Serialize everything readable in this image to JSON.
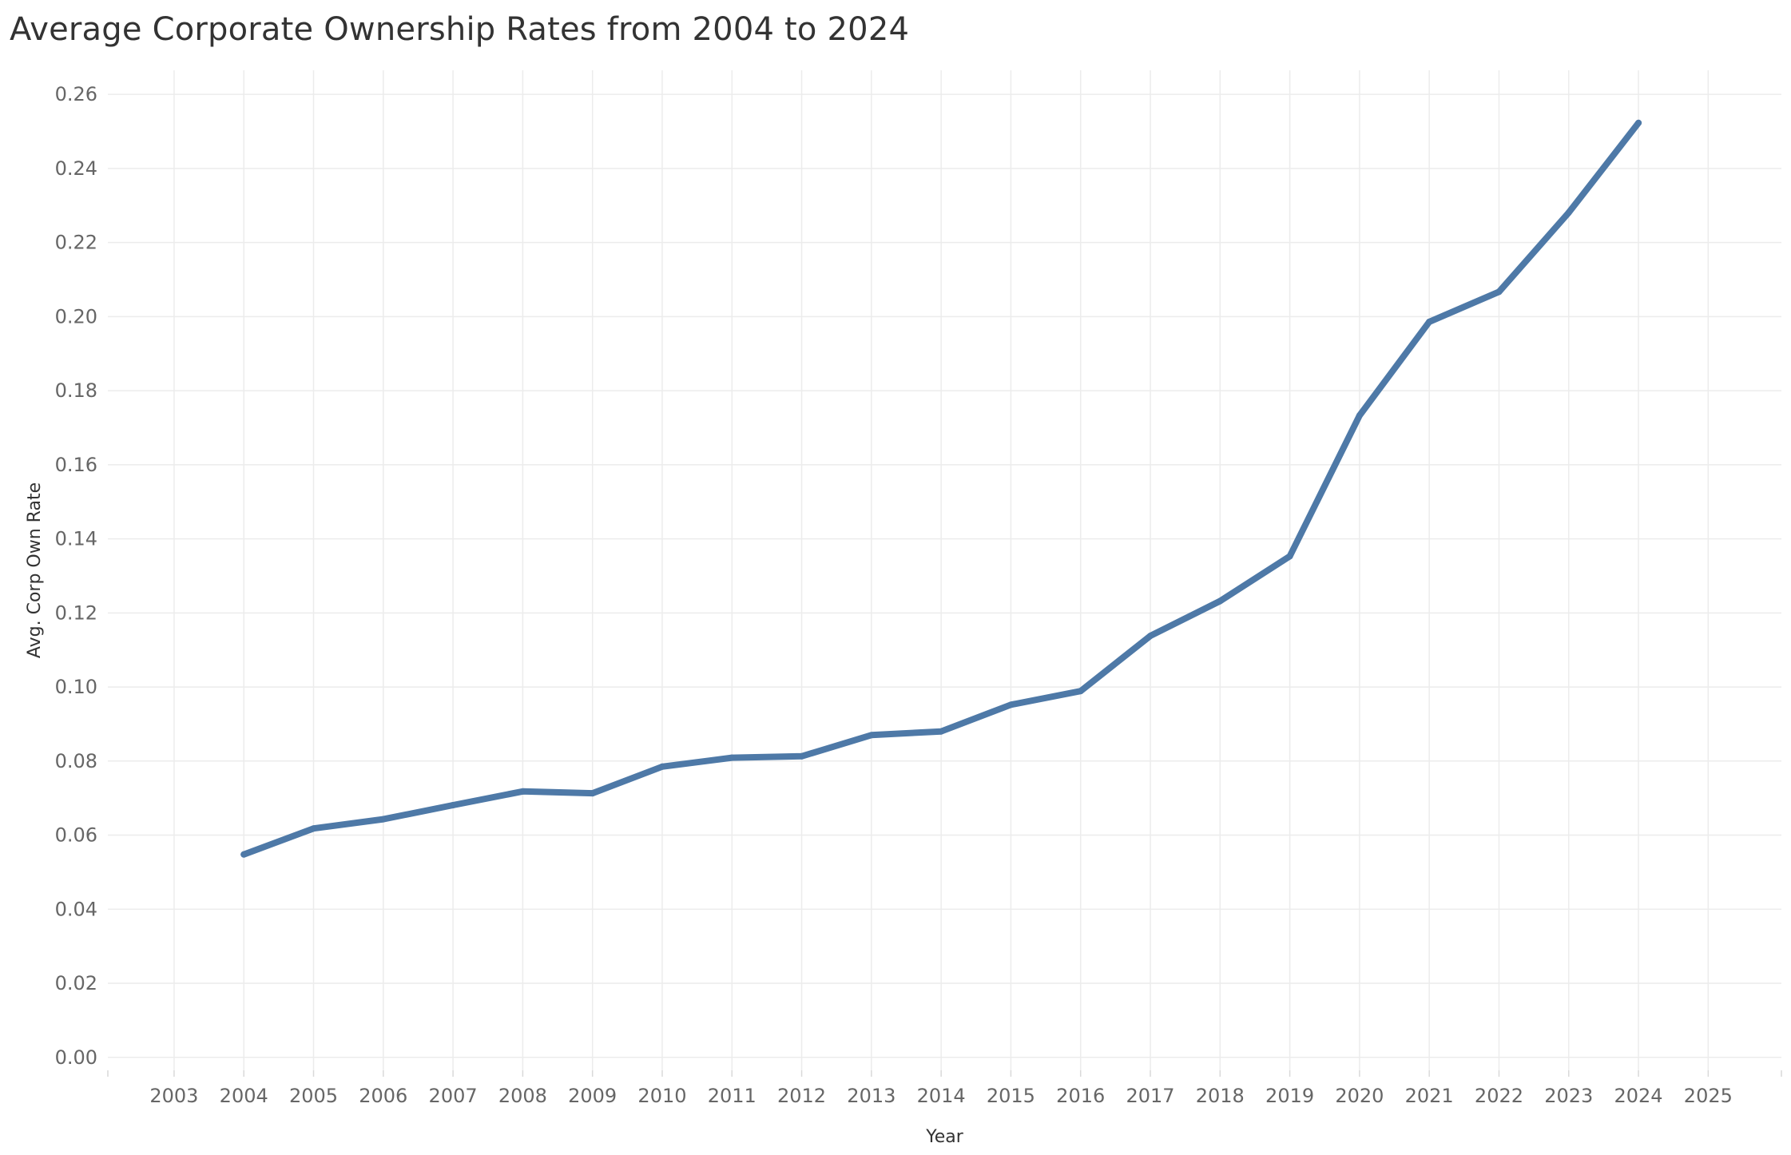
{
  "chart_data": {
    "type": "line",
    "title": "Average Corporate Ownership Rates from 2004 to 2024",
    "xlabel": "Year",
    "ylabel": "Avg. Corp Own Rate",
    "x_ticks": [
      "2003",
      "2004",
      "2005",
      "2006",
      "2007",
      "2008",
      "2009",
      "2010",
      "2011",
      "2012",
      "2013",
      "2014",
      "2015",
      "2016",
      "2017",
      "2018",
      "2019",
      "2020",
      "2021",
      "2022",
      "2023",
      "2024",
      "2025"
    ],
    "y_ticks": [
      "0.00",
      "0.02",
      "0.04",
      "0.06",
      "0.08",
      "0.10",
      "0.12",
      "0.14",
      "0.16",
      "0.18",
      "0.20",
      "0.22",
      "0.24",
      "0.26"
    ],
    "xlim": [
      2002.05,
      2026.05
    ],
    "ylim": [
      -0.0035,
      0.2665
    ],
    "grid": true,
    "series": [
      {
        "color": "#4e79a7",
        "x": [
          2004,
          2005,
          2006,
          2007,
          2008,
          2009,
          2010,
          2011,
          2012,
          2013,
          2014,
          2015,
          2016,
          2017,
          2018,
          2019,
          2020,
          2021,
          2022,
          2023,
          2024
        ],
        "values": [
          0.0548,
          0.0618,
          0.0643,
          0.0681,
          0.0718,
          0.0713,
          0.0785,
          0.0809,
          0.0813,
          0.087,
          0.088,
          0.0952,
          0.0989,
          0.1138,
          0.1232,
          0.1353,
          0.1733,
          0.1986,
          0.2067,
          0.2281,
          0.2523
        ]
      }
    ]
  }
}
